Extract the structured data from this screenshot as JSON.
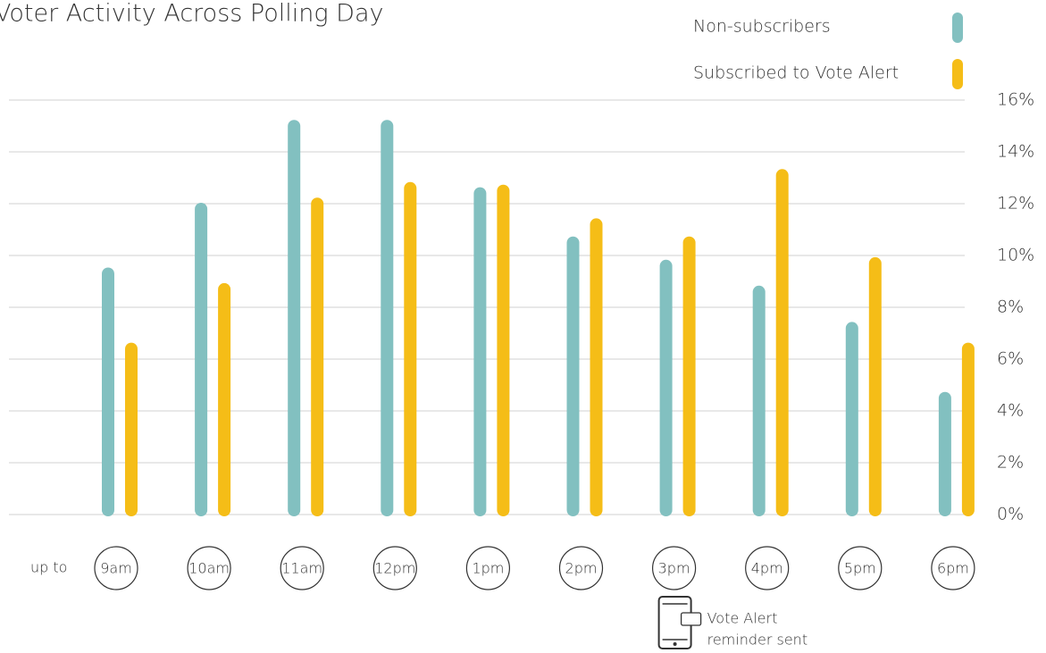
{
  "chart_data": {
    "type": "bar",
    "title": "Voter Activity Across Polling Day",
    "category_prefix": "up to",
    "categories": [
      "9am",
      "10am",
      "11am",
      "12pm",
      "1pm",
      "2pm",
      "3pm",
      "4pm",
      "5pm",
      "6pm"
    ],
    "series": [
      {
        "name": "Non-subscribers",
        "color": "#82c0c0",
        "values": [
          9.5,
          12.0,
          15.2,
          15.2,
          12.6,
          10.7,
          9.8,
          8.8,
          7.4,
          4.7
        ]
      },
      {
        "name": "Subscribed to Vote Alert",
        "color": "#f5bd17",
        "values": [
          6.6,
          8.9,
          12.2,
          12.8,
          12.7,
          11.4,
          10.7,
          13.3,
          9.9,
          6.6
        ]
      }
    ],
    "ylim": [
      0,
      16
    ],
    "yticks": [
      {
        "value": 0,
        "label": "0%"
      },
      {
        "value": 2,
        "label": "2%"
      },
      {
        "value": 4,
        "label": "4%"
      },
      {
        "value": 6,
        "label": "6%"
      },
      {
        "value": 8,
        "label": "8%"
      },
      {
        "value": 10,
        "label": "10%"
      },
      {
        "value": 12,
        "label": "12%"
      },
      {
        "value": 14,
        "label": "14%"
      },
      {
        "value": 16,
        "label": "16%"
      }
    ],
    "grid": true,
    "annotation_category": "3pm",
    "annotation": [
      "Vote Alert",
      "reminder sent"
    ]
  }
}
